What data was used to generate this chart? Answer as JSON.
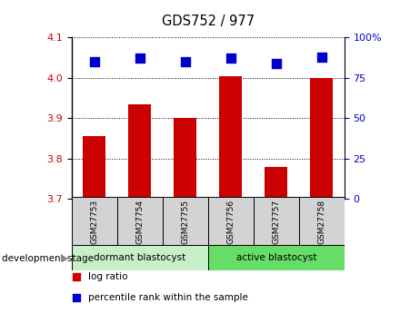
{
  "title": "GDS752 / 977",
  "samples": [
    "GSM27753",
    "GSM27754",
    "GSM27755",
    "GSM27756",
    "GSM27757",
    "GSM27758"
  ],
  "log_ratio": [
    3.855,
    3.935,
    3.9,
    4.005,
    3.78,
    4.0
  ],
  "percentile_rank": [
    85,
    87,
    85,
    87,
    84,
    88
  ],
  "ylim_left": [
    3.7,
    4.1
  ],
  "ylim_right": [
    0,
    100
  ],
  "yticks_left": [
    3.7,
    3.8,
    3.9,
    4.0,
    4.1
  ],
  "yticks_right": [
    0,
    25,
    50,
    75,
    100
  ],
  "ytick_labels_right": [
    "0",
    "25",
    "50",
    "75",
    "100%"
  ],
  "bar_color": "#cc0000",
  "dot_color": "#0000cc",
  "bar_bottom": 3.7,
  "groups": [
    {
      "label": "dormant blastocyst",
      "start": 0,
      "end": 3,
      "color": "#c8f0c8"
    },
    {
      "label": "active blastocyst",
      "start": 3,
      "end": 6,
      "color": "#66dd66"
    }
  ],
  "sample_box_color": "#d3d3d3",
  "group_row_label": "development stage",
  "legend_items": [
    {
      "label": "log ratio",
      "color": "#cc0000"
    },
    {
      "label": "percentile rank within the sample",
      "color": "#0000cc"
    }
  ],
  "tick_color_left": "#cc0000",
  "tick_color_right": "#0000cc",
  "grid_style": "dotted",
  "grid_color": "#000000",
  "bar_width": 0.5,
  "dot_size": 45
}
